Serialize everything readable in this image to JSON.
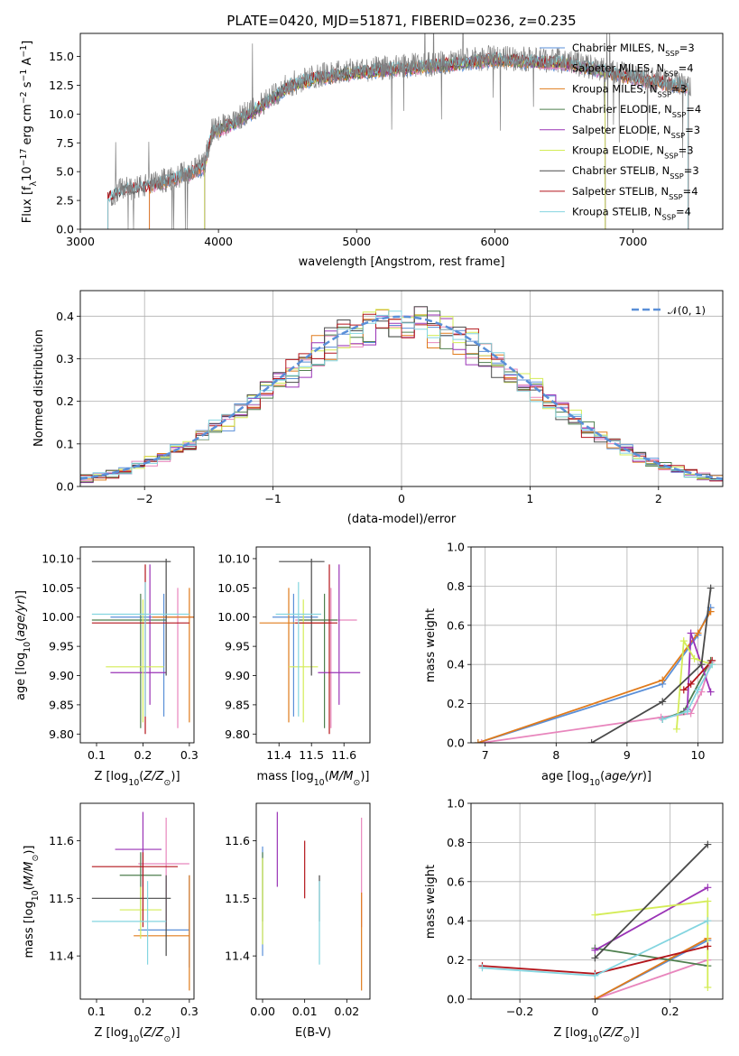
{
  "figure_title": "PLATE=0420, MJD=51871, FIBERID=0236, z=0.235",
  "colors": {
    "Chabrier MILES": "#5a8fd8",
    "Salpeter MILES": "#e886bd",
    "Kroupa MILES": "#e07b1c",
    "Chabrier ELODIE": "#4e7f4e",
    "Salpeter ELODIE": "#9a33b6",
    "Kroupa ELODIE": "#d4ec57",
    "Chabrier STELIB": "#4a4a4a",
    "Salpeter STELIB": "#b3151b",
    "Kroupa STELIB": "#84d5e0"
  },
  "chart_data": [
    {
      "type": "line",
      "title": "PLATE=0420, MJD=51871, FIBERID=0236, z=0.235",
      "xlabel": "wavelength [Angstrom, rest frame]",
      "ylabel": "Flux [f_λ10^-17 erg cm^-2 s^-1 A^-1]",
      "xlim": [
        3000,
        7650
      ],
      "ylim": [
        0,
        17
      ],
      "xticks": [
        3000,
        4000,
        5000,
        6000,
        7000
      ],
      "yticks": [
        0.0,
        2.5,
        5.0,
        7.5,
        10.0,
        12.5,
        15.0
      ],
      "legend_position": "top-right",
      "legend": [
        "Chabrier MILES, N_SSP=3",
        "Salpeter MILES, N_SSP=4",
        "Kroupa MILES, N_SSP=3",
        "Chabrier ELODIE, N_SSP=4",
        "Salpeter ELODIE, N_SSP=3",
        "Kroupa ELODIE, N_SSP=3",
        "Chabrier STELIB, N_SSP=3",
        "Salpeter STELIB, N_SSP=4",
        "Kroupa STELIB, N_SSP=4"
      ],
      "data_trend": {
        "x": [
          3200,
          3300,
          3500,
          3700,
          3900,
          3950,
          4100,
          4300,
          4500,
          4700,
          5000,
          5200,
          5500,
          6000,
          6500,
          7000,
          7400
        ],
        "y": [
          2.8,
          3.5,
          3.8,
          4.6,
          5.6,
          8.5,
          9.3,
          10.8,
          12.5,
          13.3,
          13.8,
          14.0,
          14.3,
          14.9,
          14.6,
          13.3,
          12.5
        ]
      },
      "model_ranges": {
        "Chabrier MILES": [
          3500,
          7400
        ],
        "Salpeter MILES": [
          3500,
          7400
        ],
        "Kroupa MILES": [
          3500,
          7400
        ],
        "Chabrier ELODIE": [
          3900,
          6800
        ],
        "Salpeter ELODIE": [
          3900,
          6800
        ],
        "Kroupa ELODIE": [
          3900,
          6800
        ],
        "Chabrier STELIB": [
          3200,
          7400
        ],
        "Salpeter STELIB": [
          3200,
          7400
        ],
        "Kroupa STELIB": [
          3200,
          7400
        ]
      }
    },
    {
      "type": "step",
      "xlabel": "(data-model)/error",
      "ylabel": "Normed distribution",
      "xlim": [
        -2.5,
        2.5
      ],
      "ylim": [
        0,
        0.46
      ],
      "xticks": [
        -2,
        -1,
        0,
        1,
        2
      ],
      "yticks": [
        0.0,
        0.1,
        0.2,
        0.3,
        0.4
      ],
      "grid": true,
      "legend": [
        "𝒩(0, 1)"
      ],
      "legend_position": "top-right",
      "bin_width": 0.1
    },
    {
      "type": "scatter",
      "xlabel": "Z [log10(Z/Z☉)]",
      "ylabel": "age  [log10(age/yr)]",
      "xlim": [
        0.065,
        0.31
      ],
      "ylim": [
        9.785,
        10.12
      ],
      "xticks": [
        0.1,
        0.2,
        0.3
      ],
      "yticks": [
        9.8,
        9.85,
        9.9,
        9.95,
        10.0,
        10.05,
        10.1
      ],
      "points": [
        {
          "model": "Chabrier MILES",
          "x": 0.245,
          "xerr": [
            0.13,
            0.31
          ],
          "y": 10.0,
          "yerr": [
            9.83,
            10.04
          ]
        },
        {
          "model": "Salpeter MILES",
          "x": 0.275,
          "xerr": [
            0.22,
            0.31
          ],
          "y": 10.0,
          "yerr": [
            9.81,
            10.05
          ]
        },
        {
          "model": "Kroupa MILES",
          "x": 0.3,
          "xerr": [
            0.22,
            0.31
          ],
          "y": 10.0,
          "yerr": [
            9.82,
            10.05
          ]
        },
        {
          "model": "Chabrier ELODIE",
          "x": 0.195,
          "xerr": [
            0.09,
            0.25
          ],
          "y": 9.995,
          "yerr": [
            9.81,
            10.04
          ]
        },
        {
          "model": "Salpeter ELODIE",
          "x": 0.215,
          "xerr": [
            0.13,
            0.25
          ],
          "y": 9.905,
          "yerr": [
            9.85,
            10.09
          ]
        },
        {
          "model": "Kroupa ELODIE",
          "x": 0.2,
          "xerr": [
            0.12,
            0.245
          ],
          "y": 9.915,
          "yerr": [
            9.82,
            10.03
          ]
        },
        {
          "model": "Chabrier STELIB",
          "x": 0.25,
          "xerr": [
            0.09,
            0.26
          ],
          "y": 10.095,
          "yerr": [
            9.9,
            10.1
          ]
        },
        {
          "model": "Salpeter STELIB",
          "x": 0.205,
          "xerr": [
            0.09,
            0.3
          ],
          "y": 9.99,
          "yerr": [
            9.8,
            10.09
          ]
        },
        {
          "model": "Kroupa STELIB",
          "x": 0.205,
          "xerr": [
            0.09,
            0.3
          ],
          "y": 10.005,
          "yerr": [
            9.83,
            10.06
          ]
        }
      ]
    },
    {
      "type": "scatter",
      "xlabel": "mass [log10(M/M☉)]",
      "ylabel": "",
      "xlim": [
        11.33,
        11.68
      ],
      "ylim": [
        9.785,
        10.12
      ],
      "xticks": [
        11.4,
        11.5,
        11.6
      ],
      "yticks": [
        9.8,
        9.85,
        9.9,
        9.95,
        10.0,
        10.05,
        10.1
      ],
      "points": [
        {
          "model": "Chabrier MILES",
          "x": 11.445,
          "xerr": [
            11.38,
            11.52
          ],
          "y": 10.0,
          "yerr": [
            9.83,
            10.04
          ]
        },
        {
          "model": "Salpeter MILES",
          "x": 11.56,
          "xerr": [
            11.45,
            11.64
          ],
          "y": 9.995,
          "yerr": [
            9.81,
            10.05
          ]
        },
        {
          "model": "Kroupa MILES",
          "x": 11.43,
          "xerr": [
            11.34,
            11.55
          ],
          "y": 9.99,
          "yerr": [
            9.82,
            10.05
          ]
        },
        {
          "model": "Chabrier ELODIE",
          "x": 11.54,
          "xerr": [
            11.46,
            11.58
          ],
          "y": 9.995,
          "yerr": [
            9.81,
            10.04
          ]
        },
        {
          "model": "Salpeter ELODIE",
          "x": 11.585,
          "xerr": [
            11.52,
            11.65
          ],
          "y": 9.905,
          "yerr": [
            9.85,
            10.09
          ]
        },
        {
          "model": "Kroupa ELODIE",
          "x": 11.475,
          "xerr": [
            11.43,
            11.52
          ],
          "y": 9.915,
          "yerr": [
            9.82,
            10.03
          ]
        },
        {
          "model": "Chabrier STELIB",
          "x": 11.5,
          "xerr": [
            11.4,
            11.54
          ],
          "y": 10.095,
          "yerr": [
            9.9,
            10.1
          ]
        },
        {
          "model": "Salpeter STELIB",
          "x": 11.555,
          "xerr": [
            11.45,
            11.58
          ],
          "y": 9.99,
          "yerr": [
            9.8,
            10.09
          ]
        },
        {
          "model": "Kroupa STELIB",
          "x": 11.46,
          "xerr": [
            11.39,
            11.53
          ],
          "y": 10.005,
          "yerr": [
            9.83,
            10.06
          ]
        }
      ]
    },
    {
      "type": "line",
      "xlabel": "age  [log10(age/yr)]",
      "ylabel": "mass weight",
      "xlim": [
        6.8,
        10.35
      ],
      "ylim": [
        0,
        1
      ],
      "xticks": [
        7,
        8,
        9,
        10
      ],
      "yticks": [
        0.0,
        0.2,
        0.4,
        0.6,
        0.8,
        1.0
      ],
      "grid": true,
      "series": [
        {
          "model": "Chabrier MILES",
          "x": [
            6.9,
            9.5,
            10.0,
            10.18
          ],
          "y": [
            0.0,
            0.3,
            0.55,
            0.69
          ]
        },
        {
          "model": "Salpeter MILES",
          "x": [
            6.95,
            9.48,
            9.9,
            10.05,
            10.18
          ],
          "y": [
            0.0,
            0.13,
            0.15,
            0.26,
            0.41
          ]
        },
        {
          "model": "Kroupa MILES",
          "x": [
            6.9,
            9.5,
            10.0,
            10.18
          ],
          "y": [
            0.0,
            0.32,
            0.56,
            0.67
          ]
        },
        {
          "model": "Chabrier ELODIE",
          "x": [
            9.5,
            9.8,
            10.18
          ],
          "y": [
            0.12,
            0.16,
            0.42
          ]
        },
        {
          "model": "Salpeter ELODIE",
          "x": [
            9.85,
            9.9,
            10.18
          ],
          "y": [
            0.17,
            0.56,
            0.26
          ]
        },
        {
          "model": "Kroupa ELODIE",
          "x": [
            9.7,
            9.8,
            9.95,
            10.2
          ],
          "y": [
            0.07,
            0.52,
            0.43,
            0.4
          ]
        },
        {
          "model": "Chabrier STELIB",
          "x": [
            8.5,
            9.5,
            10.05,
            10.18
          ],
          "y": [
            0.0,
            0.21,
            0.4,
            0.79
          ]
        },
        {
          "model": "Salpeter STELIB",
          "x": [
            9.8,
            9.9,
            10.2
          ],
          "y": [
            0.27,
            0.3,
            0.42
          ]
        },
        {
          "model": "Kroupa STELIB",
          "x": [
            9.5,
            9.85,
            10.0,
            10.2
          ],
          "y": [
            0.12,
            0.16,
            0.27,
            0.4
          ]
        }
      ]
    },
    {
      "type": "scatter",
      "xlabel": "Z [log10(Z/Z☉)]",
      "ylabel": "mass [log10(M/M☉)]",
      "xlim": [
        0.065,
        0.31
      ],
      "ylim": [
        11.325,
        11.665
      ],
      "xticks": [
        0.1,
        0.2,
        0.3
      ],
      "yticks": [
        11.4,
        11.5,
        11.6
      ],
      "points": [
        {
          "model": "Chabrier MILES",
          "x": 0.3,
          "xerr": [
            0.19,
            0.3
          ],
          "y": 11.445,
          "yerr": [
            11.38,
            11.54
          ]
        },
        {
          "model": "Salpeter MILES",
          "x": 0.25,
          "xerr": [
            0.19,
            0.3
          ],
          "y": 11.56,
          "yerr": [
            11.45,
            11.64
          ]
        },
        {
          "model": "Kroupa MILES",
          "x": 0.3,
          "xerr": [
            0.18,
            0.3
          ],
          "y": 11.435,
          "yerr": [
            11.34,
            11.54
          ]
        },
        {
          "model": "Chabrier ELODIE",
          "x": 0.195,
          "xerr": [
            0.15,
            0.24
          ],
          "y": 11.54,
          "yerr": [
            11.46,
            11.58
          ]
        },
        {
          "model": "Salpeter ELODIE",
          "x": 0.2,
          "xerr": [
            0.14,
            0.24
          ],
          "y": 11.585,
          "yerr": [
            11.52,
            11.65
          ]
        },
        {
          "model": "Kroupa ELODIE",
          "x": 0.195,
          "xerr": [
            0.15,
            0.24
          ],
          "y": 11.48,
          "yerr": [
            11.43,
            11.52
          ]
        },
        {
          "model": "Chabrier STELIB",
          "x": 0.25,
          "xerr": [
            0.09,
            0.26
          ],
          "y": 11.5,
          "yerr": [
            11.4,
            11.54
          ]
        },
        {
          "model": "Salpeter STELIB",
          "x": 0.2,
          "xerr": [
            0.09,
            0.275
          ],
          "y": 11.555,
          "yerr": [
            11.45,
            11.58
          ]
        },
        {
          "model": "Kroupa STELIB",
          "x": 0.21,
          "xerr": [
            0.09,
            0.25
          ],
          "y": 11.46,
          "yerr": [
            11.385,
            11.53
          ]
        }
      ]
    },
    {
      "type": "scatter",
      "xlabel": "E(B-V)",
      "ylabel": "",
      "xlim": [
        -0.0015,
        0.0255
      ],
      "ylim": [
        11.325,
        11.665
      ],
      "xticks": [
        0.0,
        0.01,
        0.02
      ],
      "yticks": [
        11.4,
        11.5,
        11.6
      ],
      "points": [
        {
          "model": "Chabrier MILES",
          "x": 0.0,
          "y": 11.445,
          "yerr": [
            11.4,
            11.59
          ]
        },
        {
          "model": "Salpeter MILES",
          "x": 0.0235,
          "y": 11.56,
          "yerr": [
            11.45,
            11.64
          ]
        },
        {
          "model": "Kroupa MILES",
          "x": 0.0235,
          "y": 11.435,
          "yerr": [
            11.34,
            11.51
          ]
        },
        {
          "model": "Chabrier ELODIE",
          "x": 0.0,
          "y": 11.52,
          "yerr": [
            11.46,
            11.58
          ]
        },
        {
          "model": "Salpeter ELODIE",
          "x": 0.0035,
          "y": 11.585,
          "yerr": [
            11.52,
            11.65
          ]
        },
        {
          "model": "Kroupa ELODIE",
          "x": 0.0,
          "y": 11.48,
          "yerr": [
            11.42,
            11.57
          ]
        },
        {
          "model": "Chabrier STELIB",
          "x": 0.0135,
          "y": 11.5,
          "yerr": [
            11.46,
            11.54
          ]
        },
        {
          "model": "Salpeter STELIB",
          "x": 0.01,
          "y": 11.555,
          "yerr": [
            11.5,
            11.6
          ]
        },
        {
          "model": "Kroupa STELIB",
          "x": 0.0135,
          "y": 11.46,
          "yerr": [
            11.385,
            11.53
          ]
        }
      ]
    },
    {
      "type": "line",
      "xlabel": "Z [log10(Z/Z☉)]",
      "ylabel": "mass weight",
      "xlim": [
        -0.33,
        0.34
      ],
      "ylim": [
        0,
        1
      ],
      "xticks": [
        -0.2,
        0.0,
        0.2
      ],
      "yticks": [
        0.0,
        0.2,
        0.4,
        0.6,
        0.8,
        1.0
      ],
      "grid": true,
      "series": [
        {
          "model": "Chabrier MILES",
          "x": [
            0.0,
            0.3
          ],
          "y": [
            0.0,
            0.3
          ]
        },
        {
          "model": "Salpeter MILES",
          "x": [
            0.0,
            0.3
          ],
          "y": [
            0.0,
            0.2
          ]
        },
        {
          "model": "Kroupa MILES",
          "x": [
            0.0,
            0.3
          ],
          "y": [
            0.0,
            0.31
          ]
        },
        {
          "model": "Chabrier ELODIE",
          "x": [
            0.0,
            0.3
          ],
          "y": [
            0.26,
            0.17
          ]
        },
        {
          "model": "Salpeter ELODIE",
          "x": [
            0.0,
            0.3
          ],
          "y": [
            0.25,
            0.57
          ]
        },
        {
          "model": "Kroupa ELODIE",
          "x": [
            0.0,
            0.3,
            0.3
          ],
          "y": [
            0.43,
            0.5,
            0.06
          ]
        },
        {
          "model": "Chabrier STELIB",
          "x": [
            0.0,
            0.3
          ],
          "y": [
            0.21,
            0.79
          ]
        },
        {
          "model": "Salpeter STELIB",
          "x": [
            -0.3,
            0.0,
            0.3
          ],
          "y": [
            0.17,
            0.13,
            0.27
          ]
        },
        {
          "model": "Kroupa STELIB",
          "x": [
            -0.3,
            0.0,
            0.3
          ],
          "y": [
            0.16,
            0.12,
            0.4
          ]
        }
      ]
    }
  ]
}
